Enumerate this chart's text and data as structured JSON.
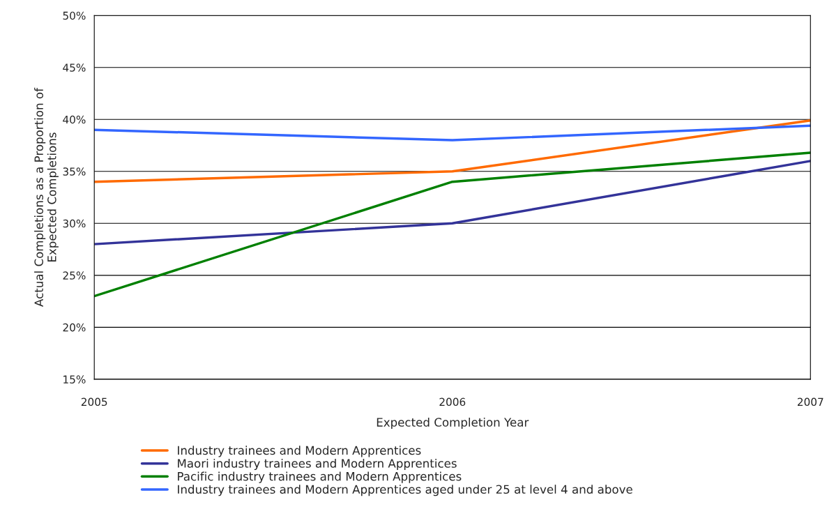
{
  "chart_data": {
    "type": "line",
    "xlabel": "Expected Completion Year",
    "ylabel": "Actual Completions as a Proportion of Expected Completions",
    "x": [
      2005,
      2006,
      2007
    ],
    "series": [
      {
        "name": "Industry trainees and Modern Apprentices",
        "color": "#ff6a00",
        "values": [
          34,
          35,
          39.9
        ]
      },
      {
        "name": "Maori industry trainees and Modern Apprentices",
        "color": "#333399",
        "values": [
          28,
          30,
          36.0
        ]
      },
      {
        "name": "Pacific industry trainees and Modern Apprentices",
        "color": "#008000",
        "values": [
          23,
          34,
          36.8
        ]
      },
      {
        "name": "Industry trainees and Modern Apprentices aged under 25 at level 4 and above",
        "color": "#3366ff",
        "values": [
          39,
          38,
          39.4
        ]
      }
    ],
    "xlim": [
      2005,
      2007
    ],
    "xticks": [
      2005,
      2006,
      2007
    ],
    "ylim": [
      15,
      50
    ],
    "yticks": [
      {
        "value": 15,
        "label": "15%"
      },
      {
        "value": 20,
        "label": "20%"
      },
      {
        "value": 25,
        "label": "25%"
      },
      {
        "value": 30,
        "label": "30%"
      },
      {
        "value": 35,
        "label": "35%"
      },
      {
        "value": 40,
        "label": "40%"
      },
      {
        "value": 45,
        "label": "45%"
      },
      {
        "value": 50,
        "label": "50%"
      }
    ],
    "grid": "y",
    "legend": "bottom",
    "marker": "none",
    "line_style": "solid"
  }
}
